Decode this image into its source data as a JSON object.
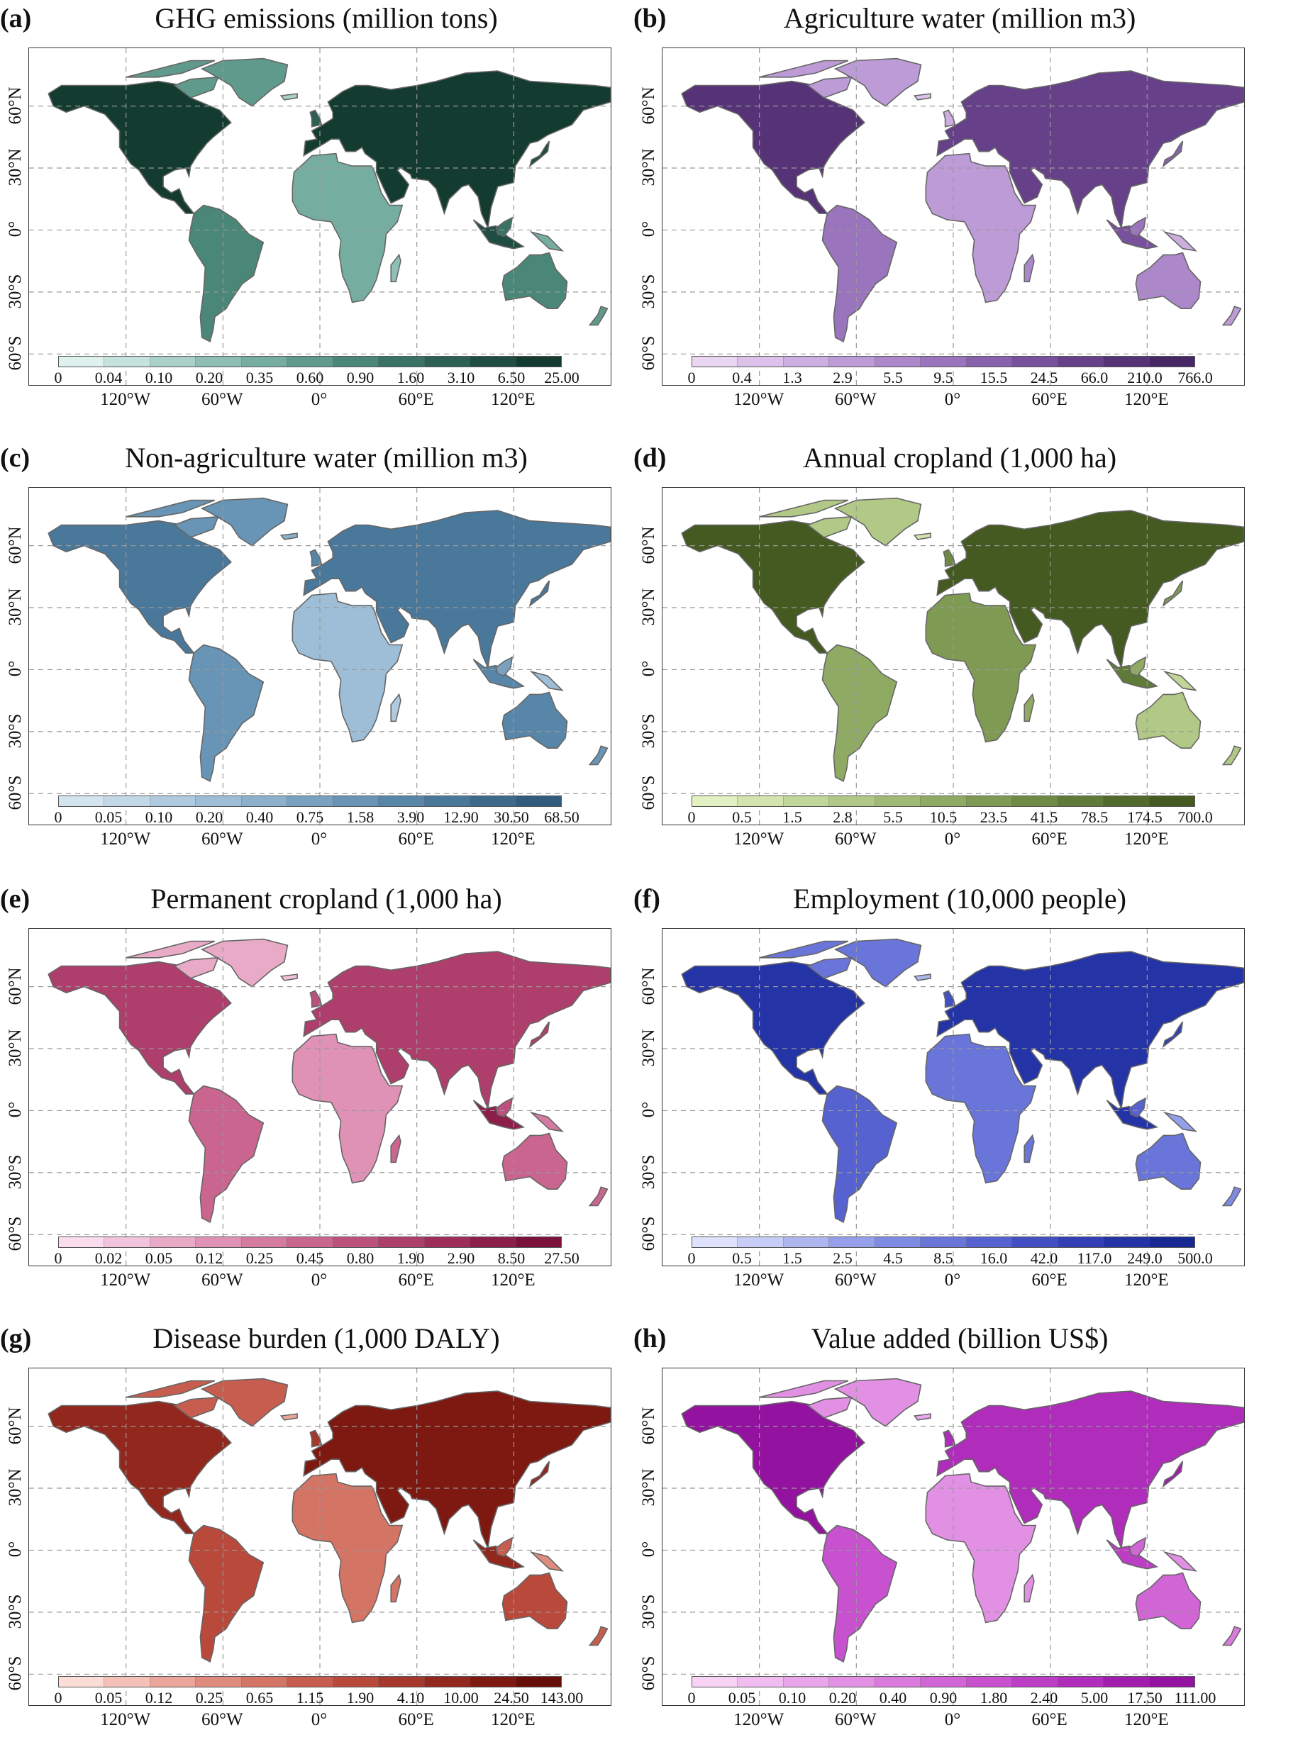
{
  "lat_labels": [
    "60°N",
    "30°N",
    "0°",
    "30°S",
    "60°S"
  ],
  "lon_labels": [
    "120°W",
    "60°W",
    "0°",
    "60°E",
    "120°E"
  ],
  "panels": [
    {
      "letter": "(a)",
      "title": "GHG emissions (million tons)",
      "breaks": [
        "0",
        "0.04",
        "0.10",
        "0.20",
        "0.35",
        "0.60",
        "0.90",
        "1.60",
        "3.10",
        "6.50",
        "25.00"
      ],
      "colors": [
        "#dff1ec",
        "#c5e3dc",
        "#a9d1c8",
        "#8fbfb4",
        "#76ada1",
        "#5f9a8d",
        "#4a8779",
        "#3a7366",
        "#2c6053",
        "#1f4d41",
        "#143b30"
      ]
    },
    {
      "letter": "(b)",
      "title": "Agriculture water (million m3)",
      "breaks": [
        "0",
        "0.4",
        "1.3",
        "2.9",
        "5.5",
        "9.5",
        "15.5",
        "24.5",
        "66.0",
        "210.0",
        "766.0"
      ],
      "colors": [
        "#ead6f2",
        "#dcc2ea",
        "#cdaee1",
        "#bd9bd6",
        "#ac88ca",
        "#9a74bd",
        "#8862ad",
        "#77519c",
        "#66418a",
        "#563377",
        "#462664"
      ]
    },
    {
      "letter": "(c)",
      "title": "Non-agriculture water (million m3)",
      "breaks": [
        "0",
        "0.05",
        "0.10",
        "0.20",
        "0.40",
        "0.75",
        "1.58",
        "3.90",
        "12.90",
        "30.50",
        "68.50"
      ],
      "colors": [
        "#d4e4ef",
        "#c2d8e7",
        "#b0cbdf",
        "#9dbed6",
        "#8bb0cc",
        "#79a2c1",
        "#6894b5",
        "#5886a9",
        "#4a789b",
        "#3d6a8c",
        "#315c7d"
      ]
    },
    {
      "letter": "(d)",
      "title": "Annual cropland (1,000 ha)",
      "breaks": [
        "0",
        "0.5",
        "1.5",
        "2.8",
        "5.5",
        "10.5",
        "23.5",
        "41.5",
        "78.5",
        "174.5",
        "700.0"
      ],
      "colors": [
        "#e3f0c2",
        "#d3e4ae",
        "#c2d69a",
        "#b1c886",
        "#a0b974",
        "#8faa63",
        "#7f9a53",
        "#6f8a45",
        "#607a38",
        "#526a2c",
        "#445a21"
      ]
    },
    {
      "letter": "(e)",
      "title": "Permanent cropland (1,000 ha)",
      "breaks": [
        "0",
        "0.02",
        "0.05",
        "0.12",
        "0.25",
        "0.45",
        "0.80",
        "1.90",
        "2.90",
        "8.50",
        "27.50"
      ],
      "colors": [
        "#fbdcef",
        "#f2c3dc",
        "#e9aac8",
        "#df92b5",
        "#d57ba2",
        "#c9658f",
        "#bd517d",
        "#ae3e6b",
        "#9e2d5a",
        "#8c1e4a",
        "#7a113b"
      ]
    },
    {
      "letter": "(f)",
      "title": "Employment (10,000 people)",
      "breaks": [
        "0",
        "0.5",
        "1.5",
        "2.5",
        "4.5",
        "8.5",
        "16.0",
        "42.0",
        "117.0",
        "249.0",
        "500.0"
      ],
      "colors": [
        "#dfe2fb",
        "#c7cdf6",
        "#aeb6f0",
        "#96a0ea",
        "#7f8ae2",
        "#6975d9",
        "#5562cf",
        "#4350c3",
        "#3340b5",
        "#2433a5",
        "#182893"
      ]
    },
    {
      "letter": "(g)",
      "title": "Disease burden (1,000 DALY)",
      "breaks": [
        "0",
        "0.05",
        "0.12",
        "0.25",
        "0.65",
        "1.15",
        "1.90",
        "4.10",
        "10.00",
        "24.50",
        "143.00"
      ],
      "colors": [
        "#fbdcd6",
        "#f3c1b8",
        "#ea a69a",
        "#df8c7e",
        "#d47465",
        "#c75d4f",
        "#b8493b",
        "#a6372b",
        "#92271d",
        "#7d1911",
        "#680e08"
      ]
    },
    {
      "letter": "(h)",
      "title": "Value added (billion US$)",
      "breaks": [
        "0",
        "0.05",
        "0.10",
        "0.20",
        "0.40",
        "0.90",
        "1.80",
        "2.40",
        "5.00",
        "17.50",
        "111.00"
      ],
      "colors": [
        "#f8d3f6",
        "#f1bdf0",
        "#eaa6ea",
        "#e290e4",
        "#da7add",
        "#d165d6",
        "#c751ce",
        "#bc3ec5",
        "#af2dba",
        "#a11ead",
        "#93129f"
      ]
    }
  ]
}
